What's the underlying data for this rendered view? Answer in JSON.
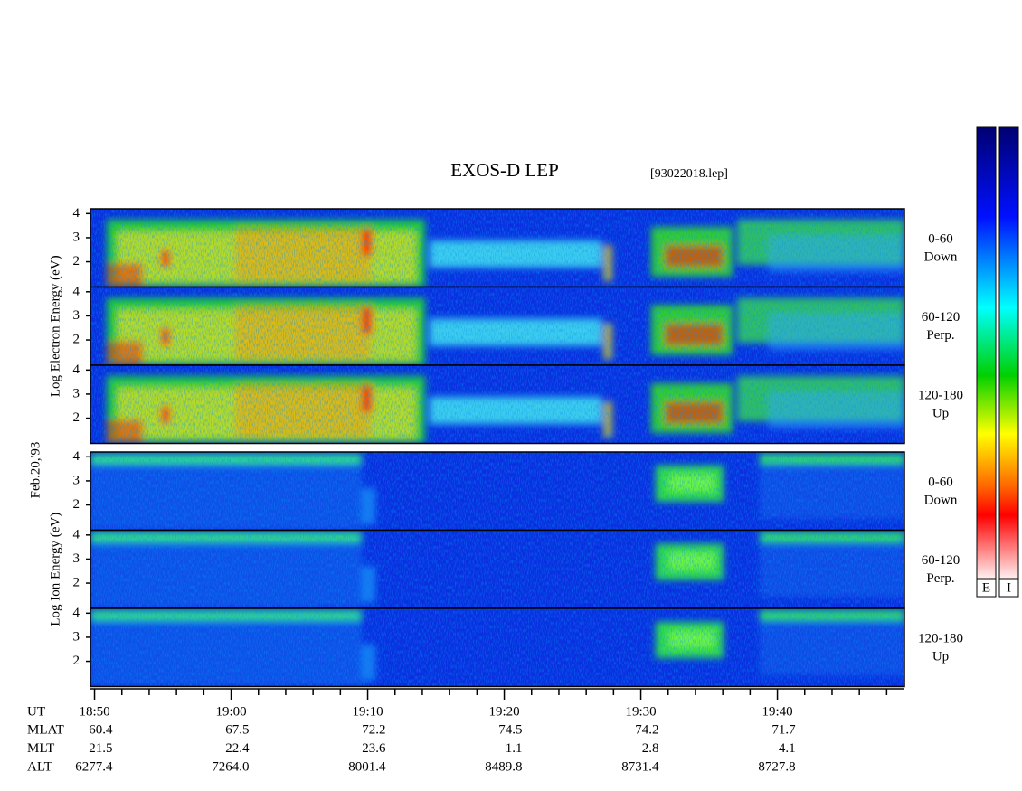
{
  "title": "EXOS-D LEP",
  "file": "[93022018.lep]",
  "date": "Feb.20,'93",
  "ylim": [
    0.95,
    4.2
  ],
  "yticks": [
    2,
    3,
    4
  ],
  "groups": [
    {
      "ylabel": "Log Electron Energy (eV)",
      "panels": [
        {
          "label": "0-60",
          "sublabel": "Down"
        },
        {
          "label": "60-120",
          "sublabel": "Perp."
        },
        {
          "label": "120-180",
          "sublabel": "Up"
        }
      ]
    },
    {
      "ylabel": "Log Ion Energy (eV)",
      "panels": [
        {
          "label": "0-60",
          "sublabel": "Down"
        },
        {
          "label": "60-120",
          "sublabel": "Perp."
        },
        {
          "label": "120-180",
          "sublabel": "Up"
        }
      ]
    }
  ],
  "time_axis": {
    "name": "UT",
    "xlim": [
      1129.7,
      1189.3
    ],
    "xticks": [
      {
        "value": 1130,
        "label": "18:50"
      },
      {
        "value": 1140,
        "label": "19:00"
      },
      {
        "value": 1150,
        "label": "19:10"
      },
      {
        "value": 1160,
        "label": "19:20"
      },
      {
        "value": 1170,
        "label": "19:30"
      },
      {
        "value": 1180,
        "label": "19:40"
      }
    ]
  },
  "ephemeris": [
    {
      "name": "MLAT",
      "values": [
        "60.4",
        "67.5",
        "72.2",
        "74.5",
        "74.2",
        "71.7"
      ]
    },
    {
      "name": "MLT",
      "values": [
        "21.5",
        "22.4",
        "23.6",
        "1.1",
        "2.8",
        "4.1"
      ]
    },
    {
      "name": "ALT",
      "values": [
        "6277.4",
        "7264.0",
        "8001.4",
        "8489.8",
        "8731.4",
        "8727.8"
      ]
    }
  ],
  "colorbars": [
    "E",
    "I"
  ]
}
